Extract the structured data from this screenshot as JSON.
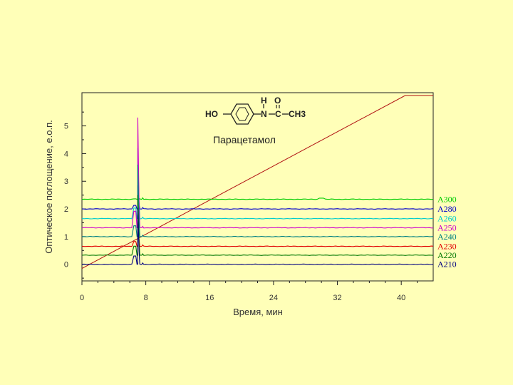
{
  "chart_data": {
    "type": "line",
    "title": "",
    "xlabel": "Время, мин",
    "ylabel": "Оптическое поглощение, е.о.п.",
    "xlim": [
      0,
      44
    ],
    "ylim": [
      -0.6,
      6.2
    ],
    "x_ticks": [
      0,
      8,
      16,
      24,
      32,
      40
    ],
    "y_ticks": [
      0,
      1,
      2,
      3,
      4,
      5
    ],
    "grid": false,
    "legend_position": "right",
    "annotation": {
      "compound": "Парацетамол",
      "formula": {
        "ho": "HO",
        "h": "H",
        "o": "O",
        "n": "N",
        "c": "C",
        "ch3": "CH3"
      }
    },
    "gradient_line": {
      "color": "#b01010",
      "x": [
        0,
        40.5,
        44
      ],
      "y": [
        -0.15,
        6.1,
        6.1
      ]
    },
    "series": [
      {
        "name": "A300",
        "color": "#00cc00",
        "baseline": 2.35,
        "peak_x": 7.0,
        "peak_y": 2.45
      },
      {
        "name": "A280",
        "color": "#0000cc",
        "baseline": 2.0,
        "peak_x": 7.0,
        "peak_y": 2.85
      },
      {
        "name": "A260",
        "color": "#00cccc",
        "baseline": 1.65,
        "peak_x": 7.0,
        "peak_y": 4.2
      },
      {
        "name": "A250",
        "color": "#cc00cc",
        "baseline": 1.32,
        "peak_x": 7.0,
        "peak_y": 5.3
      },
      {
        "name": "A240",
        "color": "#008080",
        "baseline": 1.0,
        "peak_x": 7.0,
        "peak_y": 3.6
      },
      {
        "name": "A230",
        "color": "#e00000",
        "baseline": 0.65,
        "peak_x": 7.0,
        "peak_y": 1.8
      },
      {
        "name": "A220",
        "color": "#007700",
        "baseline": 0.33,
        "peak_x": 7.0,
        "peak_y": 2.5
      },
      {
        "name": "A210",
        "color": "#000080",
        "baseline": 0.0,
        "peak_x": 7.0,
        "peak_y": 2.0
      }
    ]
  }
}
